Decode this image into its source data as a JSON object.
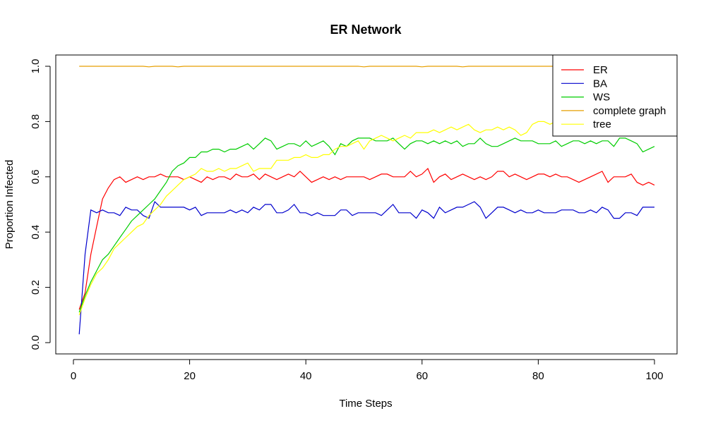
{
  "chart_data": {
    "type": "line",
    "title": "ER Network",
    "xlabel": "Time Steps",
    "ylabel": "Proportion Infected",
    "xlim": [
      1,
      100
    ],
    "ylim": [
      0,
      1.0
    ],
    "x_ticks": [
      0,
      20,
      40,
      60,
      80,
      100
    ],
    "y_ticks": [
      "0.0",
      "0.2",
      "0.4",
      "0.6",
      "0.8",
      "1.0"
    ],
    "grid": false,
    "legend_position": "top-right",
    "x": [
      1,
      2,
      3,
      4,
      5,
      6,
      7,
      8,
      9,
      10,
      11,
      12,
      13,
      14,
      15,
      16,
      17,
      18,
      19,
      20,
      21,
      22,
      23,
      24,
      25,
      26,
      27,
      28,
      29,
      30,
      31,
      32,
      33,
      34,
      35,
      36,
      37,
      38,
      39,
      40,
      41,
      42,
      43,
      44,
      45,
      46,
      47,
      48,
      49,
      50,
      51,
      52,
      53,
      54,
      55,
      56,
      57,
      58,
      59,
      60,
      61,
      62,
      63,
      64,
      65,
      66,
      67,
      68,
      69,
      70,
      71,
      72,
      73,
      74,
      75,
      76,
      77,
      78,
      79,
      80,
      81,
      82,
      83,
      84,
      85,
      86,
      87,
      88,
      89,
      90,
      91,
      92,
      93,
      94,
      95,
      96,
      97,
      98,
      99,
      100
    ],
    "series": [
      {
        "name": "ER",
        "color": "#ff0000",
        "values": [
          0.12,
          0.18,
          0.32,
          0.42,
          0.52,
          0.56,
          0.59,
          0.6,
          0.58,
          0.59,
          0.6,
          0.59,
          0.6,
          0.6,
          0.61,
          0.6,
          0.6,
          0.6,
          0.59,
          0.6,
          0.59,
          0.58,
          0.6,
          0.59,
          0.6,
          0.6,
          0.59,
          0.61,
          0.6,
          0.6,
          0.61,
          0.59,
          0.61,
          0.6,
          0.59,
          0.6,
          0.61,
          0.6,
          0.62,
          0.6,
          0.58,
          0.59,
          0.6,
          0.59,
          0.6,
          0.59,
          0.6,
          0.6,
          0.6,
          0.6,
          0.59,
          0.6,
          0.61,
          0.61,
          0.6,
          0.6,
          0.6,
          0.62,
          0.6,
          0.61,
          0.63,
          0.58,
          0.6,
          0.61,
          0.59,
          0.6,
          0.61,
          0.6,
          0.59,
          0.6,
          0.59,
          0.6,
          0.62,
          0.62,
          0.6,
          0.61,
          0.6,
          0.59,
          0.6,
          0.61,
          0.61,
          0.6,
          0.61,
          0.6,
          0.6,
          0.59,
          0.58,
          0.59,
          0.6,
          0.61,
          0.62,
          0.58,
          0.6,
          0.6,
          0.6,
          0.61,
          0.58,
          0.57,
          0.58,
          0.57
        ]
      },
      {
        "name": "BA",
        "color": "#0000cd",
        "values": [
          0.03,
          0.32,
          0.48,
          0.47,
          0.48,
          0.47,
          0.47,
          0.46,
          0.49,
          0.48,
          0.48,
          0.46,
          0.45,
          0.51,
          0.49,
          0.49,
          0.49,
          0.49,
          0.49,
          0.48,
          0.49,
          0.46,
          0.47,
          0.47,
          0.47,
          0.47,
          0.48,
          0.47,
          0.48,
          0.47,
          0.49,
          0.48,
          0.5,
          0.5,
          0.47,
          0.47,
          0.48,
          0.5,
          0.47,
          0.47,
          0.46,
          0.47,
          0.46,
          0.46,
          0.46,
          0.48,
          0.48,
          0.46,
          0.47,
          0.47,
          0.47,
          0.47,
          0.46,
          0.48,
          0.5,
          0.47,
          0.47,
          0.47,
          0.45,
          0.48,
          0.47,
          0.45,
          0.49,
          0.47,
          0.48,
          0.49,
          0.49,
          0.5,
          0.51,
          0.49,
          0.45,
          0.47,
          0.49,
          0.49,
          0.48,
          0.47,
          0.48,
          0.47,
          0.47,
          0.48,
          0.47,
          0.47,
          0.47,
          0.48,
          0.48,
          0.48,
          0.47,
          0.47,
          0.48,
          0.47,
          0.49,
          0.48,
          0.45,
          0.45,
          0.47,
          0.47,
          0.46,
          0.49,
          0.49,
          0.49
        ]
      },
      {
        "name": "WS",
        "color": "#00cd00",
        "values": [
          0.11,
          0.17,
          0.22,
          0.26,
          0.3,
          0.32,
          0.35,
          0.38,
          0.41,
          0.44,
          0.46,
          0.48,
          0.5,
          0.52,
          0.55,
          0.58,
          0.62,
          0.64,
          0.65,
          0.67,
          0.67,
          0.69,
          0.69,
          0.7,
          0.7,
          0.69,
          0.7,
          0.7,
          0.71,
          0.72,
          0.7,
          0.72,
          0.74,
          0.73,
          0.7,
          0.71,
          0.72,
          0.72,
          0.71,
          0.73,
          0.71,
          0.72,
          0.73,
          0.71,
          0.68,
          0.72,
          0.71,
          0.73,
          0.74,
          0.74,
          0.74,
          0.73,
          0.73,
          0.73,
          0.74,
          0.72,
          0.7,
          0.72,
          0.73,
          0.73,
          0.72,
          0.73,
          0.72,
          0.73,
          0.72,
          0.73,
          0.71,
          0.72,
          0.72,
          0.74,
          0.72,
          0.71,
          0.71,
          0.72,
          0.73,
          0.74,
          0.73,
          0.73,
          0.73,
          0.72,
          0.72,
          0.72,
          0.73,
          0.71,
          0.72,
          0.73,
          0.73,
          0.72,
          0.73,
          0.72,
          0.73,
          0.73,
          0.71,
          0.74,
          0.74,
          0.73,
          0.72,
          0.69,
          0.7,
          0.71
        ]
      },
      {
        "name": "complete graph",
        "color": "#e69f00",
        "values": [
          1.0,
          1.0,
          1.0,
          1.0,
          1.0,
          1.0,
          1.0,
          1.0,
          1.0,
          1.0,
          1.0,
          1.0,
          0.998,
          1.0,
          1.0,
          1.0,
          1.0,
          0.998,
          1.0,
          1.0,
          1.0,
          1.0,
          1.0,
          1.0,
          1.0,
          1.0,
          1.0,
          1.0,
          1.0,
          1.0,
          1.0,
          1.0,
          1.0,
          1.0,
          1.0,
          1.0,
          1.0,
          1.0,
          1.0,
          1.0,
          1.0,
          1.0,
          1.0,
          1.0,
          1.0,
          1.0,
          1.0,
          1.0,
          1.0,
          0.998,
          1.0,
          1.0,
          1.0,
          1.0,
          1.0,
          1.0,
          1.0,
          1.0,
          1.0,
          0.998,
          1.0,
          1.0,
          1.0,
          1.0,
          1.0,
          1.0,
          0.998,
          1.0,
          1.0,
          1.0,
          1.0,
          1.0,
          1.0,
          1.0,
          1.0,
          1.0,
          1.0,
          1.0,
          1.0,
          1.0,
          1.0,
          1.0,
          1.0,
          1.0,
          1.0,
          1.0,
          1.0,
          1.0,
          1.0,
          1.0,
          1.0,
          1.0,
          1.0,
          1.0,
          1.0,
          1.0,
          1.0,
          1.0,
          1.0,
          1.0
        ]
      },
      {
        "name": "tree",
        "color": "#ffff00",
        "values": [
          0.1,
          0.16,
          0.21,
          0.25,
          0.27,
          0.3,
          0.34,
          0.36,
          0.38,
          0.4,
          0.42,
          0.43,
          0.46,
          0.48,
          0.5,
          0.53,
          0.55,
          0.57,
          0.59,
          0.6,
          0.61,
          0.63,
          0.62,
          0.62,
          0.63,
          0.62,
          0.63,
          0.63,
          0.64,
          0.65,
          0.62,
          0.63,
          0.63,
          0.63,
          0.66,
          0.66,
          0.66,
          0.67,
          0.67,
          0.68,
          0.67,
          0.67,
          0.68,
          0.68,
          0.7,
          0.71,
          0.71,
          0.72,
          0.73,
          0.7,
          0.73,
          0.74,
          0.75,
          0.74,
          0.73,
          0.74,
          0.75,
          0.74,
          0.76,
          0.76,
          0.76,
          0.77,
          0.76,
          0.77,
          0.78,
          0.77,
          0.78,
          0.79,
          0.77,
          0.76,
          0.77,
          0.77,
          0.78,
          0.77,
          0.78,
          0.77,
          0.75,
          0.76,
          0.79,
          0.8,
          0.8,
          0.79,
          0.8,
          0.8,
          0.79,
          0.8,
          0.79,
          0.8,
          0.79,
          0.78,
          0.79,
          0.79,
          0.78,
          0.8,
          0.79,
          0.79,
          0.8,
          0.8,
          0.79,
          0.79
        ]
      }
    ]
  }
}
